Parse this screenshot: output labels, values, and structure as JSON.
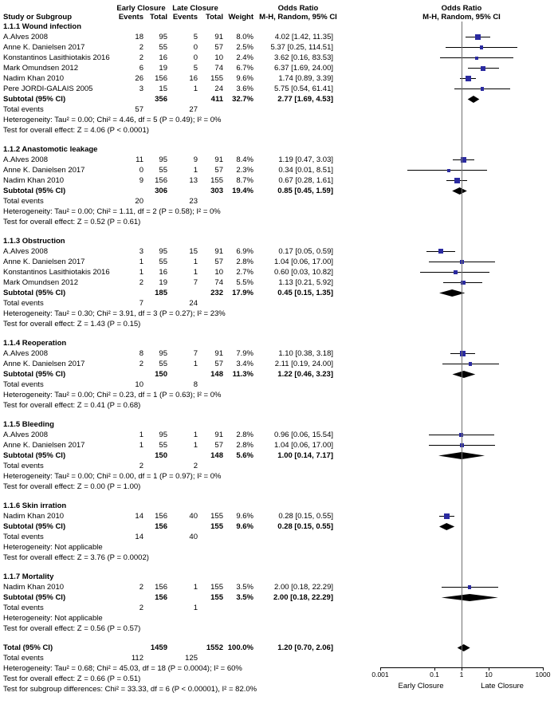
{
  "header": {
    "study_col": "Study or Subgroup",
    "group1": "Early Closure",
    "group2": "Late Closure",
    "events": "Events",
    "total": "Total",
    "weight": "Weight",
    "or_line1": "Odds Ratio",
    "or_line2": "M-H, Random, 95% CI",
    "plot_line1": "Odds Ratio",
    "plot_line2": "M-H, Random, 95% CI"
  },
  "colors": {
    "marker": "#2b2ba0",
    "ci_line": "#000000",
    "diamond": "#000000",
    "refline": "#707070"
  },
  "chart_data": {
    "type": "forest",
    "effect_measure": "Odds Ratio (M-H, Random, 95% CI)",
    "axis": {
      "scale": "log",
      "min": 0.001,
      "max": 1000,
      "ticks": [
        0.001,
        0.1,
        1,
        10,
        1000
      ],
      "tick_labels": [
        "0.001",
        "0.1",
        "1",
        "10",
        "1000"
      ],
      "left_label": "Early Closure",
      "right_label": "Late Closure"
    },
    "sections": [
      {
        "title": "1.1.1 Wound infection",
        "studies": [
          {
            "name": "A.Alves 2008",
            "e1": "18",
            "t1": "95",
            "e2": "5",
            "t2": "91",
            "weight": "8.0%",
            "or_text": "4.02 [1.42, 11.35]",
            "or": 4.02,
            "lo": 1.42,
            "hi": 11.35
          },
          {
            "name": "Anne K. Danielsen 2017",
            "e1": "2",
            "t1": "55",
            "e2": "0",
            "t2": "57",
            "weight": "2.5%",
            "or_text": "5.37 [0.25, 114.51]",
            "or": 5.37,
            "lo": 0.25,
            "hi": 114.51
          },
          {
            "name": "Konstantinos Lasithiotakis 2016",
            "e1": "2",
            "t1": "16",
            "e2": "0",
            "t2": "10",
            "weight": "2.4%",
            "or_text": "3.62 [0.16, 83.53]",
            "or": 3.62,
            "lo": 0.16,
            "hi": 83.53
          },
          {
            "name": "Mark Omundsen 2012",
            "e1": "6",
            "t1": "19",
            "e2": "5",
            "t2": "74",
            "weight": "6.7%",
            "or_text": "6.37 [1.69, 24.00]",
            "or": 6.37,
            "lo": 1.69,
            "hi": 24.0
          },
          {
            "name": "Nadim Khan 2010",
            "e1": "26",
            "t1": "156",
            "e2": "16",
            "t2": "155",
            "weight": "9.6%",
            "or_text": "1.74 [0.89, 3.39]",
            "or": 1.74,
            "lo": 0.89,
            "hi": 3.39
          },
          {
            "name": "Pere JORDI-GALAIS 2005",
            "e1": "3",
            "t1": "15",
            "e2": "1",
            "t2": "24",
            "weight": "3.6%",
            "or_text": "5.75 [0.54, 61.41]",
            "or": 5.75,
            "lo": 0.54,
            "hi": 61.41
          }
        ],
        "subtotal": {
          "label": "Subtotal (95% CI)",
          "t1": "356",
          "t2": "411",
          "weight": "32.7%",
          "or_text": "2.77 [1.69, 4.53]",
          "or": 2.77,
          "lo": 1.69,
          "hi": 4.53
        },
        "total_events": {
          "label": "Total events",
          "e1": "57",
          "e2": "27"
        },
        "heterogeneity": "Heterogeneity: Tau² = 0.00; Chi² = 4.46, df = 5 (P = 0.49); I² = 0%",
        "test": "Test for overall effect: Z = 4.06 (P < 0.0001)"
      },
      {
        "title": "1.1.2 Anastomotic leakage",
        "studies": [
          {
            "name": "A.Alves 2008",
            "e1": "11",
            "t1": "95",
            "e2": "9",
            "t2": "91",
            "weight": "8.4%",
            "or_text": "1.19 [0.47, 3.03]",
            "or": 1.19,
            "lo": 0.47,
            "hi": 3.03
          },
          {
            "name": "Anne K. Danielsen 2017",
            "e1": "0",
            "t1": "55",
            "e2": "1",
            "t2": "57",
            "weight": "2.3%",
            "or_text": "0.34 [0.01, 8.51]",
            "or": 0.34,
            "lo": 0.01,
            "hi": 8.51
          },
          {
            "name": "Nadim Khan 2010",
            "e1": "9",
            "t1": "156",
            "e2": "13",
            "t2": "155",
            "weight": "8.7%",
            "or_text": "0.67 [0.28, 1.61]",
            "or": 0.67,
            "lo": 0.28,
            "hi": 1.61
          }
        ],
        "subtotal": {
          "label": "Subtotal (95% CI)",
          "t1": "306",
          "t2": "303",
          "weight": "19.4%",
          "or_text": "0.85 [0.45, 1.59]",
          "or": 0.85,
          "lo": 0.45,
          "hi": 1.59
        },
        "total_events": {
          "label": "Total events",
          "e1": "20",
          "e2": "23"
        },
        "heterogeneity": "Heterogeneity: Tau² = 0.00; Chi² = 1.11, df = 2 (P = 0.58); I² = 0%",
        "test": "Test for overall effect: Z = 0.52 (P = 0.61)"
      },
      {
        "title": "1.1.3 Obstruction",
        "studies": [
          {
            "name": "A.Alves 2008",
            "e1": "3",
            "t1": "95",
            "e2": "15",
            "t2": "91",
            "weight": "6.9%",
            "or_text": "0.17 [0.05, 0.59]",
            "or": 0.17,
            "lo": 0.05,
            "hi": 0.59
          },
          {
            "name": "Anne K. Danielsen 2017",
            "e1": "1",
            "t1": "55",
            "e2": "1",
            "t2": "57",
            "weight": "2.8%",
            "or_text": "1.04 [0.06, 17.00]",
            "or": 1.04,
            "lo": 0.06,
            "hi": 17.0
          },
          {
            "name": "Konstantinos Lasithiotakis 2016",
            "e1": "1",
            "t1": "16",
            "e2": "1",
            "t2": "10",
            "weight": "2.7%",
            "or_text": "0.60 [0.03, 10.82]",
            "or": 0.6,
            "lo": 0.03,
            "hi": 10.82
          },
          {
            "name": "Mark Omundsen 2012",
            "e1": "2",
            "t1": "19",
            "e2": "7",
            "t2": "74",
            "weight": "5.5%",
            "or_text": "1.13 [0.21, 5.92]",
            "or": 1.13,
            "lo": 0.21,
            "hi": 5.92
          }
        ],
        "subtotal": {
          "label": "Subtotal (95% CI)",
          "t1": "185",
          "t2": "232",
          "weight": "17.9%",
          "or_text": "0.45 [0.15, 1.35]",
          "or": 0.45,
          "lo": 0.15,
          "hi": 1.35
        },
        "total_events": {
          "label": "Total events",
          "e1": "7",
          "e2": "24"
        },
        "heterogeneity": "Heterogeneity: Tau² = 0.30; Chi² = 3.91, df = 3 (P = 0.27); I² = 23%",
        "test": "Test for overall effect: Z = 1.43 (P = 0.15)"
      },
      {
        "title": "1.1.4 Reoperation",
        "studies": [
          {
            "name": "A.Alves 2008",
            "e1": "8",
            "t1": "95",
            "e2": "7",
            "t2": "91",
            "weight": "7.9%",
            "or_text": "1.10 [0.38, 3.18]",
            "or": 1.1,
            "lo": 0.38,
            "hi": 3.18
          },
          {
            "name": "Anne K. Danielsen 2017",
            "e1": "2",
            "t1": "55",
            "e2": "1",
            "t2": "57",
            "weight": "3.4%",
            "or_text": "2.11 [0.19, 24.00]",
            "or": 2.11,
            "lo": 0.19,
            "hi": 24.0
          }
        ],
        "subtotal": {
          "label": "Subtotal (95% CI)",
          "t1": "150",
          "t2": "148",
          "weight": "11.3%",
          "or_text": "1.22 [0.46, 3.23]",
          "or": 1.22,
          "lo": 0.46,
          "hi": 3.23
        },
        "total_events": {
          "label": "Total events",
          "e1": "10",
          "e2": "8"
        },
        "heterogeneity": "Heterogeneity: Tau² = 0.00; Chi² = 0.23, df = 1 (P = 0.63); I² = 0%",
        "test": "Test for overall effect: Z = 0.41 (P = 0.68)"
      },
      {
        "title": "1.1.5 Bleeding",
        "studies": [
          {
            "name": "A.Alves 2008",
            "e1": "1",
            "t1": "95",
            "e2": "1",
            "t2": "91",
            "weight": "2.8%",
            "or_text": "0.96 [0.06, 15.54]",
            "or": 0.96,
            "lo": 0.06,
            "hi": 15.54
          },
          {
            "name": "Anne K. Danielsen 2017",
            "e1": "1",
            "t1": "55",
            "e2": "1",
            "t2": "57",
            "weight": "2.8%",
            "or_text": "1.04 [0.06, 17.00]",
            "or": 1.04,
            "lo": 0.06,
            "hi": 17.0
          }
        ],
        "subtotal": {
          "label": "Subtotal (95% CI)",
          "t1": "150",
          "t2": "148",
          "weight": "5.6%",
          "or_text": "1.00 [0.14, 7.17]",
          "or": 1.0,
          "lo": 0.14,
          "hi": 7.17
        },
        "total_events": {
          "label": "Total events",
          "e1": "2",
          "e2": "2"
        },
        "heterogeneity": "Heterogeneity: Tau² = 0.00; Chi² = 0.00, df = 1 (P = 0.97); I² = 0%",
        "test": "Test for overall effect: Z = 0.00 (P = 1.00)"
      },
      {
        "title": "1.1.6 Skin irration",
        "studies": [
          {
            "name": "Nadim Khan 2010",
            "e1": "14",
            "t1": "156",
            "e2": "40",
            "t2": "155",
            "weight": "9.6%",
            "or_text": "0.28 [0.15, 0.55]",
            "or": 0.28,
            "lo": 0.15,
            "hi": 0.55
          }
        ],
        "subtotal": {
          "label": "Subtotal (95% CI)",
          "t1": "156",
          "t2": "155",
          "weight": "9.6%",
          "or_text": "0.28 [0.15, 0.55]",
          "or": 0.28,
          "lo": 0.15,
          "hi": 0.55
        },
        "total_events": {
          "label": "Total events",
          "e1": "14",
          "e2": "40"
        },
        "heterogeneity": "Heterogeneity: Not applicable",
        "test": "Test for overall effect: Z = 3.76 (P = 0.0002)"
      },
      {
        "title": "1.1.7 Mortality",
        "studies": [
          {
            "name": "Nadim Khan 2010",
            "e1": "2",
            "t1": "156",
            "e2": "1",
            "t2": "155",
            "weight": "3.5%",
            "or_text": "2.00 [0.18, 22.29]",
            "or": 2.0,
            "lo": 0.18,
            "hi": 22.29
          }
        ],
        "subtotal": {
          "label": "Subtotal (95% CI)",
          "t1": "156",
          "t2": "155",
          "weight": "3.5%",
          "or_text": "2.00 [0.18, 22.29]",
          "or": 2.0,
          "lo": 0.18,
          "hi": 22.29
        },
        "total_events": {
          "label": "Total events",
          "e1": "2",
          "e2": "1"
        },
        "heterogeneity": "Heterogeneity: Not applicable",
        "test": "Test for overall effect: Z = 0.56 (P = 0.57)"
      }
    ],
    "total": {
      "label": "Total (95% CI)",
      "t1": "1459",
      "t2": "1552",
      "weight": "100.0%",
      "or_text": "1.20 [0.70, 2.06]",
      "or": 1.2,
      "lo": 0.7,
      "hi": 2.06,
      "total_events": {
        "label": "Total events",
        "e1": "112",
        "e2": "125"
      },
      "heterogeneity": "Heterogeneity: Tau² = 0.68; Chi² = 45.03, df = 18 (P = 0.0004); I² = 60%",
      "test": "Test for overall effect: Z = 0.66 (P = 0.51)",
      "subgroup_test": "Test for subgroup differences: Chi² = 33.33, df = 6 (P < 0.00001), I² = 82.0%"
    }
  }
}
